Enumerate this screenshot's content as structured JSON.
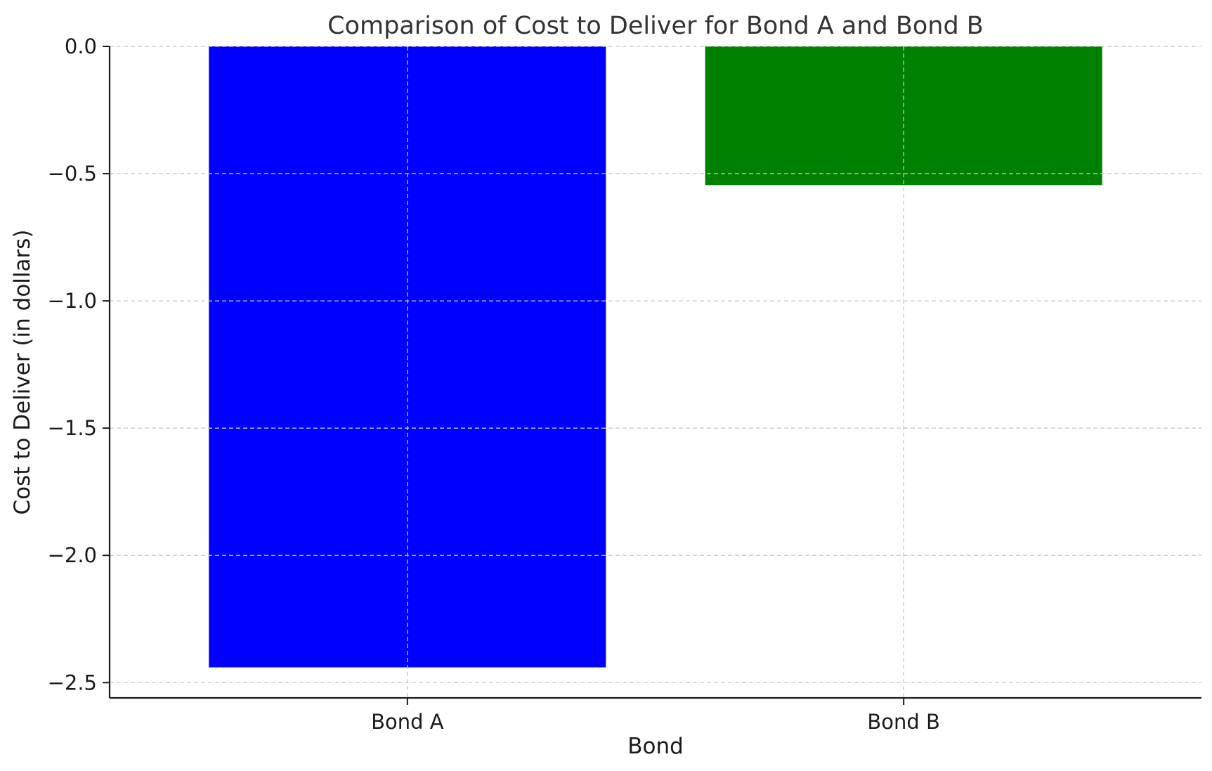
{
  "chart_data": {
    "type": "bar",
    "title": "Comparison of Cost to Deliver for Bond A and Bond B",
    "xlabel": "Bond",
    "ylabel": "Cost to Deliver (in dollars)",
    "categories": [
      "Bond A",
      "Bond B"
    ],
    "values": [
      -2.44,
      -0.545
    ],
    "colors": [
      "#0000ff",
      "#008000"
    ],
    "ylim": [
      -2.56,
      0.0
    ],
    "yticks": [
      0.0,
      -0.5,
      -1.0,
      -1.5,
      -2.0,
      -2.5
    ],
    "ytick_labels": [
      "0.0",
      "−0.5",
      "−1.0",
      "−1.5",
      "−2.0",
      "−2.5"
    ],
    "grid": true,
    "legend": "none"
  }
}
